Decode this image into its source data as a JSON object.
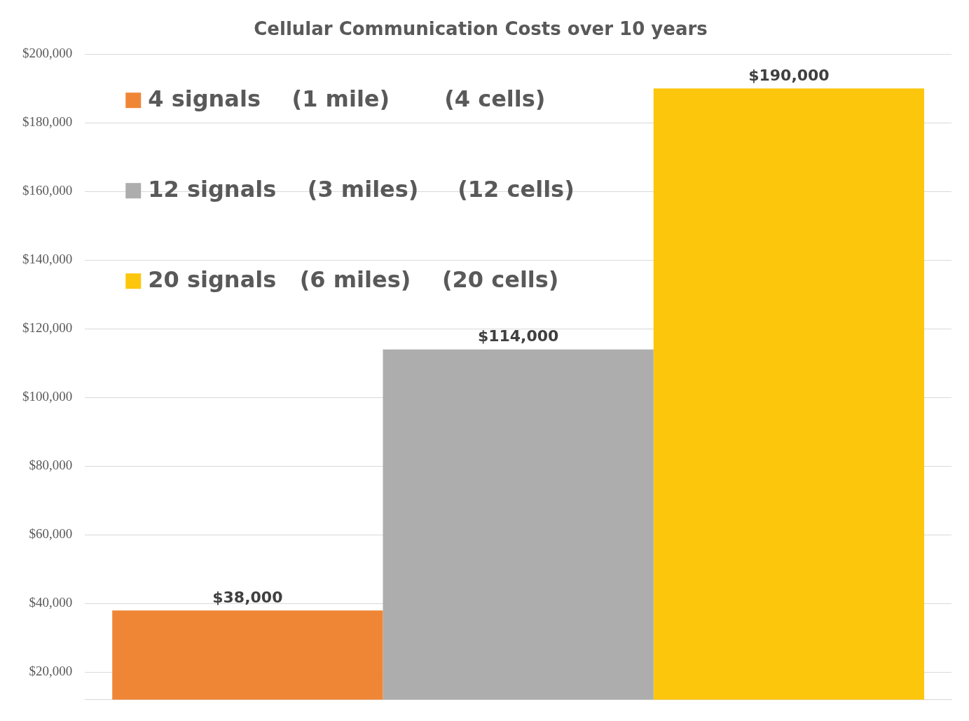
{
  "chart_data": {
    "type": "bar",
    "title": "Cellular Communication Costs over 10 years",
    "categories": [
      null
    ],
    "series": [
      {
        "name": "4 signals    (1 mile)       (4 cells)",
        "color": "#ef8636",
        "values": [
          38000
        ],
        "value_labels": [
          "$38,000"
        ]
      },
      {
        "name": "12 signals    (3 miles)     (12 cells)",
        "color": "#adadad",
        "values": [
          114000
        ],
        "value_labels": [
          "$114,000"
        ]
      },
      {
        "name": "20 signals   (6 miles)    (20 cells)",
        "color": "#fcc60c",
        "values": [
          190000
        ],
        "value_labels": [
          "$190,000"
        ]
      }
    ],
    "ylim": [
      12000,
      200000
    ],
    "yticks": [
      {
        "value": 20000,
        "label": "$20,000"
      },
      {
        "value": 40000,
        "label": "$40,000"
      },
      {
        "value": 60000,
        "label": "$60,000"
      },
      {
        "value": 80000,
        "label": "$80,000"
      },
      {
        "value": 100000,
        "label": "$100,000"
      },
      {
        "value": 120000,
        "label": "$120,000"
      },
      {
        "value": 140000,
        "label": "$140,000"
      },
      {
        "value": 160000,
        "label": "$160,000"
      },
      {
        "value": 180000,
        "label": "$180,000"
      },
      {
        "value": 200000,
        "label": "$200,000"
      }
    ],
    "grid": "y",
    "legend": "top left"
  }
}
